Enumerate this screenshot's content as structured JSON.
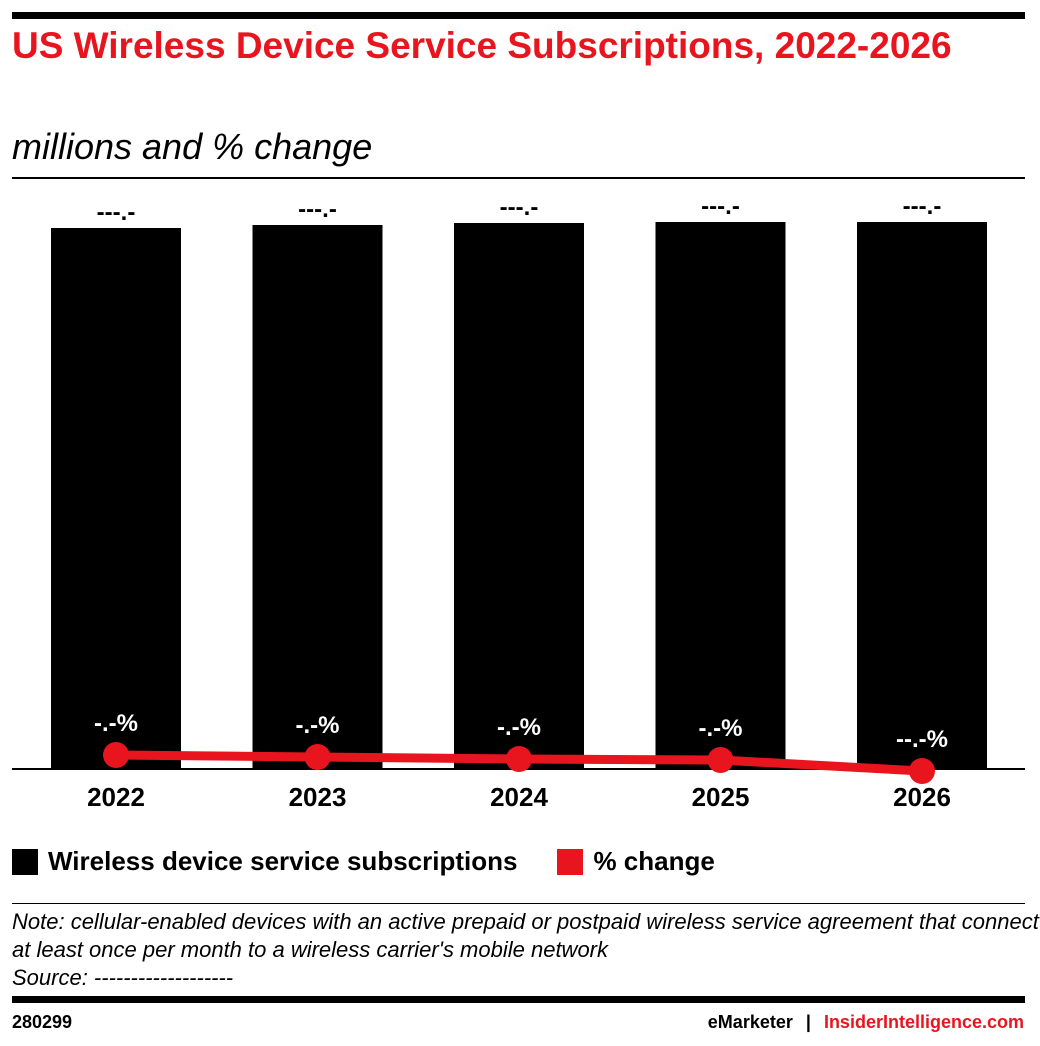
{
  "title": "US Wireless Device Service Subscriptions, 2022-2026",
  "subtitle": "millions and % change",
  "chart_data": {
    "type": "bar+line",
    "categories": [
      "2022",
      "2023",
      "2024",
      "2025",
      "2026"
    ],
    "series": [
      {
        "name": "Wireless device service subscriptions",
        "type": "bar",
        "values": [
          541,
          544,
          546,
          547,
          547
        ],
        "labels": [
          "---.-",
          "---.-",
          "---.-",
          "---.-",
          "---.-"
        ],
        "color": "#000000"
      },
      {
        "name": "% change",
        "type": "line",
        "values": [
          1.4,
          1.2,
          1.0,
          0.9,
          -0.2
        ],
        "labels": [
          "-.-%",
          "-.-%",
          "-.-%",
          "-.-%",
          "--.-%"
        ],
        "color": "#e8151f"
      }
    ],
    "ylim": [
      0,
      547
    ],
    "grid": false,
    "legend": "bottom-left"
  },
  "note": "Note: cellular-enabled devices with an active prepaid or postpaid wireless service agreement that connect at least once per month to a wireless carrier's mobile network",
  "source": "Source: -------------------",
  "footer": {
    "id": "280299",
    "brand1": "eMarketer",
    "sep": "|",
    "brand2": "InsiderIntelligence.com"
  }
}
